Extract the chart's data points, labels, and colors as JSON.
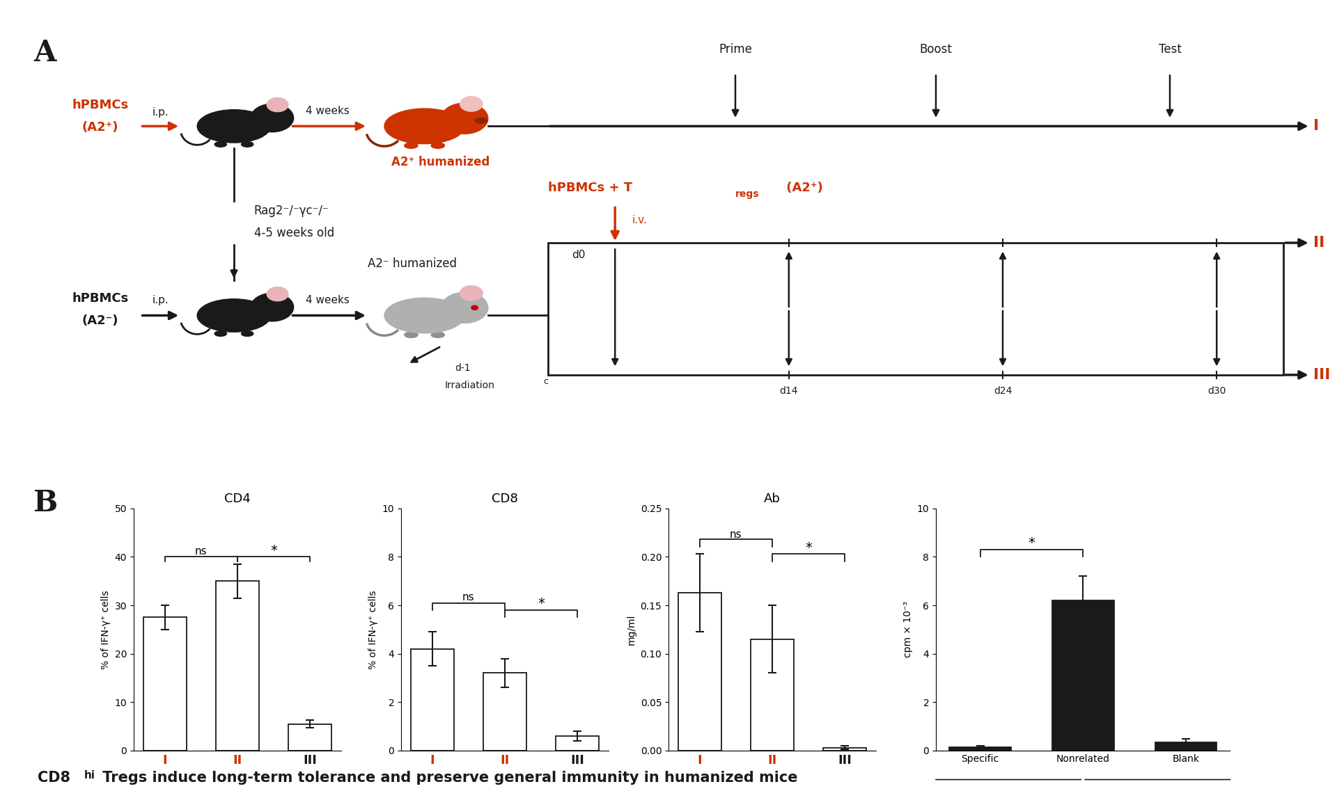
{
  "bg_color": "#ffffff",
  "panel_A_label": "A",
  "panel_B_label": "B",
  "cd4_title": "CD4",
  "cd8_title": "CD8",
  "ab_title": "Ab",
  "cd4_values": [
    27.5,
    35.0,
    5.5
  ],
  "cd4_errors": [
    2.5,
    3.5,
    0.8
  ],
  "cd8_values": [
    4.2,
    3.2,
    0.6
  ],
  "cd8_errors": [
    0.7,
    0.6,
    0.2
  ],
  "ab_values": [
    0.163,
    0.115,
    0.003
  ],
  "ab_errors": [
    0.04,
    0.035,
    0.002
  ],
  "stim_values": [
    0.15,
    6.2,
    0.35
  ],
  "stim_errors": [
    0.05,
    1.0,
    0.12
  ],
  "stim_labels": [
    "Specific",
    "Nonrelated",
    "Blank"
  ],
  "bar_color_white": "#ffffff",
  "bar_color_black": "#1a1a1a",
  "bar_edge": "#1a1a1a",
  "orange_color": "#cc3300",
  "black_color": "#1a1a1a"
}
